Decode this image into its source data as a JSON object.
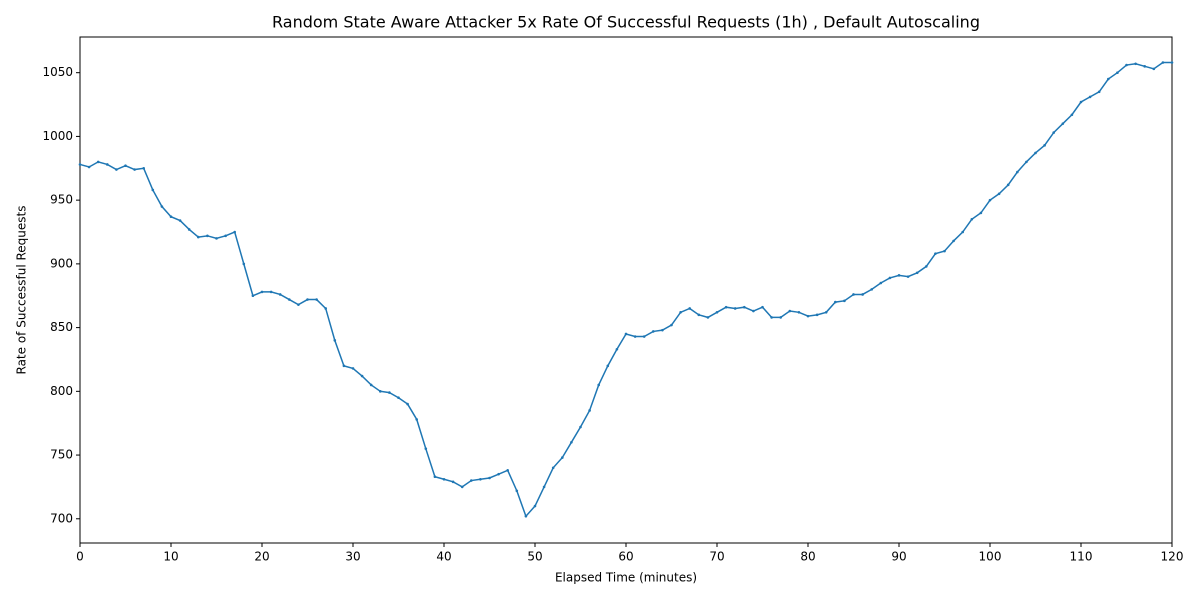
{
  "chart_data": {
    "type": "line",
    "title": "Random State Aware Attacker 5x Rate Of Successful Requests (1h) , Default Autoscaling",
    "x_label": "Elapsed Time (minutes)",
    "y_label": "Rate of Successful Requests",
    "x": [
      0,
      1,
      2,
      3,
      4,
      5,
      6,
      7,
      8,
      9,
      10,
      11,
      12,
      13,
      14,
      15,
      16,
      17,
      18,
      19,
      20,
      21,
      22,
      23,
      24,
      25,
      26,
      27,
      28,
      29,
      30,
      31,
      32,
      33,
      34,
      35,
      36,
      37,
      38,
      39,
      40,
      41,
      42,
      43,
      44,
      45,
      46,
      47,
      48,
      49,
      50,
      51,
      52,
      53,
      54,
      55,
      56,
      57,
      58,
      59,
      60,
      61,
      62,
      63,
      64,
      65,
      66,
      67,
      68,
      69,
      70,
      71,
      72,
      73,
      74,
      75,
      76,
      77,
      78,
      79,
      80,
      81,
      82,
      83,
      84,
      85,
      86,
      87,
      88,
      89,
      90,
      91,
      92,
      93,
      94,
      95,
      96,
      97,
      98,
      99,
      100,
      101,
      102,
      103,
      104,
      105,
      106,
      107,
      108,
      109,
      110,
      111,
      112,
      113,
      114,
      115,
      116,
      117,
      118,
      119,
      120
    ],
    "series": [
      {
        "color": "#1f77b4",
        "values": [
          978,
          976,
          980,
          978,
          974,
          977,
          974,
          975,
          958,
          945,
          937,
          934,
          927,
          921,
          922,
          920,
          922,
          925,
          900,
          875,
          878,
          878,
          876,
          872,
          868,
          872,
          872,
          865,
          840,
          820,
          818,
          812,
          805,
          800,
          799,
          795,
          790,
          778,
          755,
          733,
          731,
          729,
          725,
          730,
          731,
          732,
          735,
          738,
          722,
          702,
          710,
          725,
          740,
          748,
          760,
          772,
          785,
          805,
          820,
          833,
          845,
          843,
          843,
          847,
          848,
          852,
          862,
          865,
          860,
          858,
          862,
          866,
          865,
          866,
          863,
          866,
          858,
          858,
          863,
          862,
          859,
          860,
          862,
          870,
          871,
          876,
          876,
          880,
          885,
          889,
          891,
          890,
          893,
          898,
          908,
          910,
          918,
          925,
          935,
          940,
          950,
          955,
          962,
          972,
          980,
          987,
          993,
          1003,
          1010,
          1017,
          1027,
          1031,
          1035,
          1045,
          1050,
          1056,
          1057,
          1055,
          1053,
          1058,
          1058
        ]
      }
    ],
    "xlim": [
      0,
      120
    ],
    "xticks": [
      0,
      10,
      20,
      30,
      40,
      50,
      60,
      70,
      80,
      90,
      100,
      110,
      120
    ],
    "ylim": [
      681,
      1078
    ],
    "yticks": [
      700,
      750,
      800,
      850,
      900,
      950,
      1000,
      1050
    ]
  }
}
